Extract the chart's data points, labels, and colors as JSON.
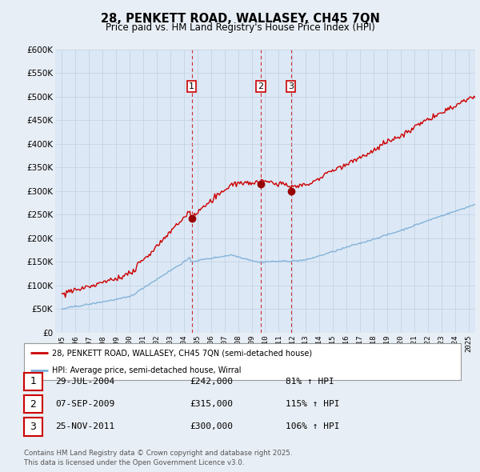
{
  "title": "28, PENKETT ROAD, WALLASEY, CH45 7QN",
  "subtitle": "Price paid vs. HM Land Registry's House Price Index (HPI)",
  "background_color": "#e8eef5",
  "plot_background_color": "#dce8f5",
  "ylabel": "",
  "ylim": [
    0,
    600000
  ],
  "yticks": [
    0,
    50000,
    100000,
    150000,
    200000,
    250000,
    300000,
    350000,
    400000,
    450000,
    500000,
    550000,
    600000
  ],
  "ytick_labels": [
    "£0",
    "£50K",
    "£100K",
    "£150K",
    "£200K",
    "£250K",
    "£300K",
    "£350K",
    "£400K",
    "£450K",
    "£500K",
    "£550K",
    "£600K"
  ],
  "transactions": [
    {
      "num": 1,
      "date_label": "29-JUL-2004",
      "date_x": 2004.57,
      "price": 242000,
      "hpi_pct": "81% ↑ HPI"
    },
    {
      "num": 2,
      "date_label": "07-SEP-2009",
      "date_x": 2009.68,
      "price": 315000,
      "hpi_pct": "115% ↑ HPI"
    },
    {
      "num": 3,
      "date_label": "25-NOV-2011",
      "date_x": 2011.9,
      "price": 300000,
      "hpi_pct": "106% ↑ HPI"
    }
  ],
  "red_line_color": "#cc0000",
  "blue_line_color": "#7aaed6",
  "legend_label_red": "28, PENKETT ROAD, WALLASEY, CH45 7QN (semi-detached house)",
  "legend_label_blue": "HPI: Average price, semi-detached house, Wirral",
  "footer": "Contains HM Land Registry data © Crown copyright and database right 2025.\nThis data is licensed under the Open Government Licence v3.0.",
  "xlim_start": 1994.5,
  "xlim_end": 2025.5,
  "xticks": [
    1995,
    1996,
    1997,
    1998,
    1999,
    2000,
    2001,
    2002,
    2003,
    2004,
    2005,
    2006,
    2007,
    2008,
    2009,
    2010,
    2011,
    2012,
    2013,
    2014,
    2015,
    2016,
    2017,
    2018,
    2019,
    2020,
    2021,
    2022,
    2023,
    2024,
    2025
  ]
}
